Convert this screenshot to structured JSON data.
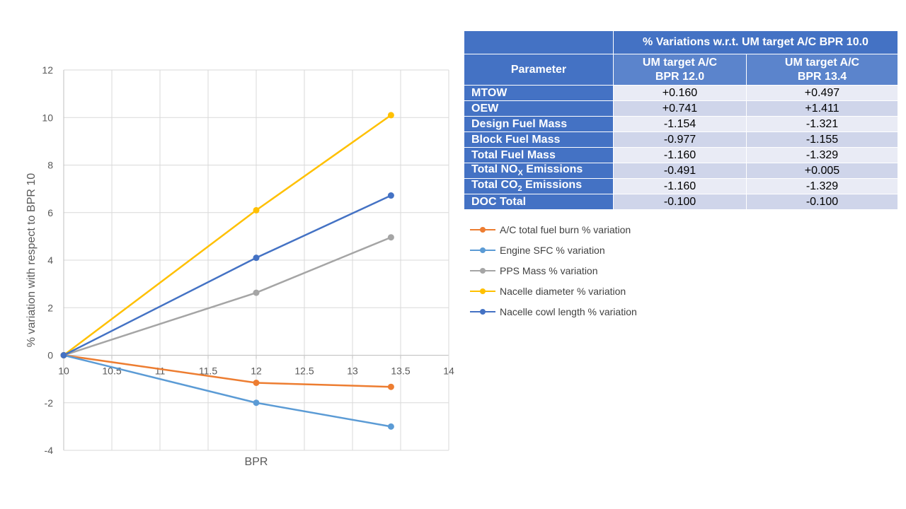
{
  "chart_data": {
    "type": "line",
    "xlabel": "BPR",
    "ylabel": "% variation with respect to BPR 10",
    "xlim": [
      10,
      14
    ],
    "ylim": [
      -4,
      12
    ],
    "xticks": [
      "10",
      "10.5",
      "11",
      "11.5",
      "12",
      "12.5",
      "13",
      "13.5",
      "14"
    ],
    "yticks": [
      "12",
      "10",
      "8",
      "6",
      "4",
      "2",
      "0",
      "-2",
      "-4"
    ],
    "x": [
      10,
      12,
      13.4
    ],
    "grid": true,
    "legend_position": "right",
    "series": [
      {
        "name": "A/C total fuel burn % variation",
        "color": "#ed7d31",
        "values": [
          0,
          -1.16,
          -1.33
        ]
      },
      {
        "name": "Engine SFC % variation",
        "color": "#5b9bd5",
        "values": [
          0,
          -2.0,
          -3.0
        ]
      },
      {
        "name": "PPS Mass % variation",
        "color": "#a5a5a5",
        "values": [
          0,
          2.63,
          4.96
        ]
      },
      {
        "name": "Nacelle diameter % variation",
        "color": "#ffc000",
        "values": [
          0,
          6.1,
          10.1
        ]
      },
      {
        "name": "Nacelle cowl length % variation",
        "color": "#4472c4",
        "values": [
          0,
          4.1,
          6.72
        ]
      }
    ]
  },
  "table": {
    "top_header": "% Variations w.r.t. UM target A/C BPR 10.0",
    "param_header": "Parameter",
    "col1_line1": "UM target A/C",
    "col1_line2": "BPR 12.0",
    "col2_line1": "UM target A/C",
    "col2_line2": "BPR 13.4",
    "rows": [
      {
        "param": "MTOW",
        "v1": "+0.160",
        "v2": "+0.497"
      },
      {
        "param": "OEW",
        "v1": "+0.741",
        "v2": "+1.411"
      },
      {
        "param": "Design Fuel Mass",
        "v1": "-1.154",
        "v2": "-1.321"
      },
      {
        "param": "Block Fuel Mass",
        "v1": "-0.977",
        "v2": "-1.155"
      },
      {
        "param": "Total Fuel Mass",
        "v1": "-1.160",
        "v2": "-1.329"
      },
      {
        "param": "Total NOx Emissions",
        "v1": "-0.491",
        "v2": "+0.005"
      },
      {
        "param": "Total CO2 Emissions",
        "v1": "-1.160",
        "v2": "-1.329"
      },
      {
        "param": "DOC Total",
        "v1": "-0.100",
        "v2": "-0.100"
      }
    ]
  }
}
